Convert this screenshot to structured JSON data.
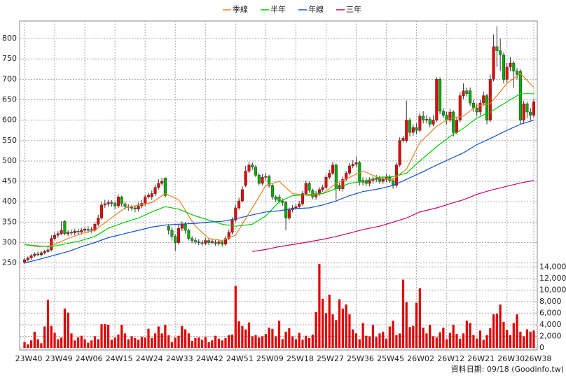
{
  "chart_data": {
    "type": "candlestick",
    "legend": "top",
    "grid": true,
    "up_color": "#ee0000",
    "down_color": "#00b000",
    "categories": [
      "23W40",
      null,
      null,
      null,
      null,
      null,
      null,
      null,
      null,
      "23W49",
      null,
      null,
      null,
      null,
      null,
      null,
      null,
      null,
      "24W06",
      null,
      null,
      null,
      null,
      null,
      null,
      null,
      null,
      "24W15",
      null,
      null,
      null,
      null,
      null,
      null,
      null,
      null,
      "24W24",
      null,
      null,
      null,
      null,
      null,
      null,
      null,
      null,
      "24W33",
      null,
      null,
      null,
      null,
      null,
      null,
      null,
      null,
      "24W42",
      null,
      null,
      null,
      null,
      null,
      null,
      null,
      null,
      "24W51",
      null,
      null,
      null,
      null,
      null,
      null,
      null,
      null,
      "25W09",
      null,
      null,
      null,
      null,
      null,
      null,
      null,
      null,
      "25W18",
      null,
      null,
      null,
      null,
      null,
      null,
      null,
      null,
      "25W27",
      null,
      null,
      null,
      null,
      null,
      null,
      null,
      null,
      "25W36",
      null,
      null,
      null,
      null,
      null,
      null,
      null,
      null,
      "25W45",
      null,
      null,
      null,
      null,
      null,
      null,
      null,
      null,
      "26W02",
      null,
      null,
      null,
      null,
      null,
      null,
      null,
      null,
      "26W12",
      null,
      null,
      null,
      null,
      null,
      null,
      null,
      null,
      "26W21",
      null,
      null,
      null,
      null,
      null,
      null,
      null,
      null,
      "26W30",
      null,
      null,
      null,
      null,
      null,
      null,
      null,
      "26W38"
    ],
    "open": [
      252,
      258,
      262,
      268,
      272,
      270,
      275,
      278,
      282,
      310,
      318,
      322,
      352,
      322,
      325,
      324,
      328,
      326,
      330,
      330,
      332,
      330,
      345,
      360,
      392,
      395,
      398,
      396,
      390,
      412,
      395,
      388,
      386,
      385,
      382,
      390,
      396,
      412,
      412,
      420,
      435,
      445,
      458,
      340,
      330,
      315,
      300,
      335,
      345,
      330,
      310,
      305,
      302,
      300,
      298,
      305,
      300,
      300,
      298,
      302,
      296,
      310,
      325,
      355,
      385,
      402,
      440,
      475,
      490,
      485,
      465,
      445,
      460,
      462,
      440,
      412,
      412,
      402,
      398,
      360,
      380,
      385,
      388,
      395,
      420,
      445,
      428,
      412,
      420,
      430,
      435,
      460,
      470,
      490,
      432,
      432,
      455,
      470,
      488,
      492,
      496,
      448,
      452,
      445,
      452,
      455,
      458,
      450,
      455,
      460,
      452,
      440,
      490,
      550,
      550,
      600,
      570,
      582,
      575,
      610,
      600,
      602,
      590,
      600,
      700,
      622,
      612,
      600,
      620,
      570,
      600,
      660,
      672,
      672,
      642,
      630,
      620,
      642,
      660,
      600,
      700,
      780,
      770,
      760,
      700,
      730,
      740,
      720,
      720,
      600,
      640,
      620,
      612
    ],
    "high": [
      262,
      266,
      272,
      276,
      278,
      280,
      282,
      290,
      318,
      325,
      328,
      352,
      355,
      330,
      332,
      334,
      334,
      336,
      338,
      340,
      338,
      350,
      368,
      400,
      405,
      405,
      404,
      400,
      418,
      415,
      400,
      394,
      392,
      390,
      398,
      404,
      418,
      422,
      428,
      442,
      455,
      458,
      460,
      345,
      338,
      320,
      345,
      352,
      350,
      334,
      316,
      312,
      308,
      306,
      312,
      310,
      308,
      306,
      308,
      306,
      316,
      332,
      362,
      392,
      410,
      438,
      488,
      498,
      496,
      490,
      470,
      468,
      470,
      466,
      444,
      416,
      418,
      408,
      402,
      386,
      392,
      395,
      402,
      426,
      452,
      450,
      432,
      426,
      436,
      442,
      466,
      478,
      498,
      494,
      446,
      462,
      476,
      495,
      502,
      510,
      500,
      460,
      458,
      460,
      462,
      466,
      464,
      462,
      468,
      466,
      458,
      496,
      558,
      562,
      648,
      605,
      590,
      592,
      618,
      622,
      612,
      608,
      612,
      705,
      705,
      630,
      620,
      628,
      624,
      608,
      668,
      690,
      680,
      680,
      650,
      640,
      650,
      670,
      665,
      712,
      810,
      830,
      800,
      765,
      740,
      755,
      745,
      728,
      725,
      648,
      645,
      630,
      652
    ],
    "low": [
      248,
      254,
      258,
      264,
      266,
      266,
      271,
      274,
      278,
      305,
      312,
      318,
      318,
      316,
      318,
      318,
      320,
      320,
      326,
      324,
      324,
      326,
      340,
      356,
      385,
      388,
      388,
      382,
      385,
      388,
      380,
      378,
      378,
      374,
      376,
      384,
      390,
      408,
      405,
      414,
      430,
      440,
      410,
      320,
      305,
      280,
      295,
      328,
      322,
      305,
      298,
      296,
      294,
      292,
      294,
      294,
      296,
      292,
      292,
      290,
      292,
      306,
      320,
      350,
      380,
      398,
      436,
      470,
      478,
      460,
      440,
      440,
      452,
      435,
      405,
      400,
      396,
      390,
      330,
      355,
      374,
      380,
      382,
      390,
      415,
      422,
      406,
      405,
      414,
      424,
      430,
      455,
      465,
      405,
      426,
      425,
      450,
      465,
      482,
      486,
      440,
      440,
      438,
      438,
      444,
      448,
      444,
      444,
      448,
      446,
      432,
      435,
      485,
      545,
      545,
      560,
      562,
      565,
      570,
      592,
      592,
      582,
      585,
      595,
      615,
      605,
      590,
      594,
      560,
      565,
      595,
      652,
      658,
      635,
      620,
      610,
      612,
      635,
      590,
      595,
      695,
      730,
      720,
      690,
      690,
      720,
      680,
      700,
      590,
      592,
      605,
      600,
      605
    ],
    "close": [
      258,
      262,
      268,
      272,
      270,
      275,
      278,
      282,
      310,
      318,
      322,
      330,
      322,
      325,
      324,
      328,
      326,
      330,
      333,
      332,
      330,
      345,
      360,
      392,
      395,
      398,
      396,
      390,
      412,
      395,
      388,
      386,
      385,
      382,
      390,
      396,
      412,
      416,
      420,
      435,
      445,
      450,
      415,
      330,
      315,
      300,
      335,
      345,
      330,
      310,
      305,
      302,
      300,
      298,
      305,
      300,
      303,
      298,
      302,
      296,
      310,
      325,
      355,
      385,
      402,
      430,
      475,
      490,
      485,
      465,
      445,
      460,
      462,
      440,
      412,
      406,
      402,
      398,
      360,
      380,
      385,
      388,
      395,
      420,
      445,
      428,
      412,
      420,
      430,
      435,
      460,
      470,
      490,
      432,
      440,
      455,
      470,
      488,
      492,
      496,
      448,
      452,
      445,
      452,
      455,
      458,
      450,
      455,
      460,
      452,
      440,
      490,
      550,
      556,
      600,
      570,
      582,
      575,
      610,
      600,
      602,
      590,
      600,
      700,
      622,
      612,
      600,
      620,
      570,
      600,
      660,
      672,
      665,
      642,
      630,
      620,
      642,
      660,
      600,
      700,
      780,
      770,
      760,
      700,
      730,
      740,
      720,
      712,
      600,
      640,
      620,
      612,
      645
    ],
    "ylim": [
      246,
      843
    ],
    "yticks": [
      250,
      300,
      350,
      400,
      450,
      500,
      550,
      600,
      650,
      700,
      750,
      800
    ],
    "series": [
      {
        "name": "季線",
        "color": "#f08020",
        "x": [
          0,
          4,
          8,
          13,
          17,
          21,
          25,
          30,
          34,
          38,
          42,
          46,
          51,
          55,
          59,
          63,
          68,
          72,
          76,
          80,
          85,
          89,
          93,
          97,
          101,
          106,
          110,
          114,
          118,
          123,
          127,
          131,
          135,
          139,
          144,
          148,
          152
        ],
        "values": [
          295,
          290,
          292,
          310,
          322,
          330,
          355,
          385,
          392,
          398,
          420,
          405,
          340,
          310,
          305,
          318,
          385,
          440,
          450,
          420,
          415,
          420,
          445,
          460,
          475,
          458,
          455,
          480,
          545,
          585,
          605,
          610,
          635,
          640,
          690,
          715,
          680
        ]
      },
      {
        "name": "半年",
        "color": "#00cc00",
        "x": [
          0,
          4,
          8,
          13,
          17,
          21,
          25,
          30,
          34,
          38,
          42,
          46,
          51,
          55,
          59,
          63,
          68,
          72,
          76,
          80,
          85,
          89,
          93,
          97,
          101,
          106,
          110,
          114,
          118,
          123,
          127,
          131,
          135,
          139,
          144,
          148,
          152
        ],
        "values": [
          295,
          292,
          290,
          298,
          305,
          315,
          335,
          350,
          360,
          375,
          388,
          382,
          365,
          355,
          345,
          340,
          345,
          365,
          400,
          415,
          418,
          420,
          432,
          445,
          450,
          460,
          462,
          470,
          500,
          535,
          560,
          580,
          605,
          620,
          645,
          665,
          665
        ]
      },
      {
        "name": "年線",
        "color": "#1050d0",
        "x": [
          0,
          4,
          8,
          13,
          17,
          21,
          25,
          30,
          34,
          38,
          42,
          46,
          51,
          55,
          59,
          63,
          68,
          72,
          76,
          80,
          85,
          89,
          93,
          97,
          101,
          106,
          110,
          114,
          118,
          123,
          127,
          131,
          135,
          139,
          144,
          148,
          152
        ],
        "values": [
          250,
          258,
          267,
          278,
          290,
          300,
          312,
          322,
          330,
          338,
          343,
          345,
          347,
          350,
          352,
          358,
          368,
          375,
          378,
          383,
          385,
          392,
          402,
          415,
          425,
          432,
          440,
          455,
          470,
          490,
          505,
          520,
          540,
          555,
          575,
          590,
          600
        ]
      },
      {
        "name": "三年",
        "color": "#cc0066",
        "x": [
          0,
          4,
          8,
          13,
          17,
          21,
          25,
          30,
          34,
          38,
          42,
          46,
          51,
          55,
          59,
          63,
          68,
          72,
          76,
          80,
          85,
          89,
          93,
          97,
          101,
          106,
          110,
          114,
          118,
          123,
          127,
          131,
          135,
          139,
          144,
          148,
          152
        ],
        "values": [
          null,
          null,
          null,
          null,
          null,
          null,
          null,
          null,
          null,
          null,
          null,
          null,
          null,
          null,
          null,
          null,
          278,
          283,
          290,
          295,
          302,
          308,
          315,
          323,
          332,
          340,
          350,
          360,
          375,
          385,
          395,
          405,
          418,
          428,
          438,
          446,
          452
        ]
      }
    ],
    "volume": {
      "color": "#e00000",
      "values": [
        1000,
        600,
        1300,
        2800,
        1500,
        800,
        3700,
        8300,
        3800,
        2600,
        1500,
        1800,
        6800,
        6100,
        2500,
        1300,
        1800,
        2100,
        1500,
        900,
        1300,
        2000,
        1500,
        4100,
        4100,
        4000,
        1400,
        1800,
        2300,
        4000,
        2500,
        1500,
        2000,
        1700,
        1400,
        1900,
        1800,
        3300,
        1700,
        2500,
        3700,
        2500,
        4000,
        2200,
        1000,
        1800,
        2100,
        3800,
        3200,
        2500,
        1200,
        1700,
        1800,
        1400,
        1900,
        1000,
        1300,
        2100,
        1600,
        1300,
        1700,
        2200,
        2300,
        10700,
        4600,
        3800,
        3200,
        4400,
        2000,
        2200,
        1800,
        2000,
        2400,
        3500,
        3300,
        2000,
        4700,
        1500,
        2800,
        3400,
        2000,
        1500,
        2600,
        1400,
        2100,
        1700,
        2300,
        6200,
        14500,
        8500,
        6000,
        9200,
        5800,
        4800,
        8400,
        6800,
        7500,
        5800,
        3200,
        2500,
        1500,
        4300,
        2100,
        2000,
        4000,
        1900,
        2500,
        2800,
        1600,
        3700,
        4700,
        2200,
        2500,
        11800,
        7900,
        3600,
        3800,
        7800,
        10300,
        3500,
        2500,
        4000,
        2000,
        1800,
        2700,
        3500,
        1500,
        2600,
        4000,
        2400,
        1600,
        2500,
        4700,
        4300,
        2200,
        1600,
        3000,
        1400,
        2200,
        3400,
        5800,
        5900,
        7500,
        4500,
        3100,
        2200,
        4300,
        5800,
        2800,
        2000,
        3200,
        2800,
        3000
      ],
      "y2lim": [
        0,
        14400
      ],
      "y2ticks": [
        0,
        {
          "value": 2000,
          "label": "2,000"
        },
        {
          "value": 4000,
          "label": "4,000"
        },
        {
          "value": 6000,
          "label": "6,000"
        },
        {
          "value": 8000,
          "label": "8,000"
        },
        {
          "value": 10000,
          "label": "10,000"
        },
        {
          "value": 12000,
          "label": "12,000"
        },
        {
          "value": 14000,
          "label": "14,000"
        }
      ]
    },
    "source": "資料日期: 09/18 (Goodinfo.tw)"
  }
}
